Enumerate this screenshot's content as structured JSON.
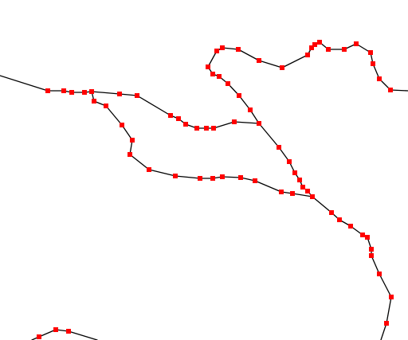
{
  "colors": {
    "background": "#ffffff",
    "line": "#000000",
    "vertex": "#ff0000"
  },
  "icons": {
    "vertex": "red-square-vertex-icon"
  }
}
